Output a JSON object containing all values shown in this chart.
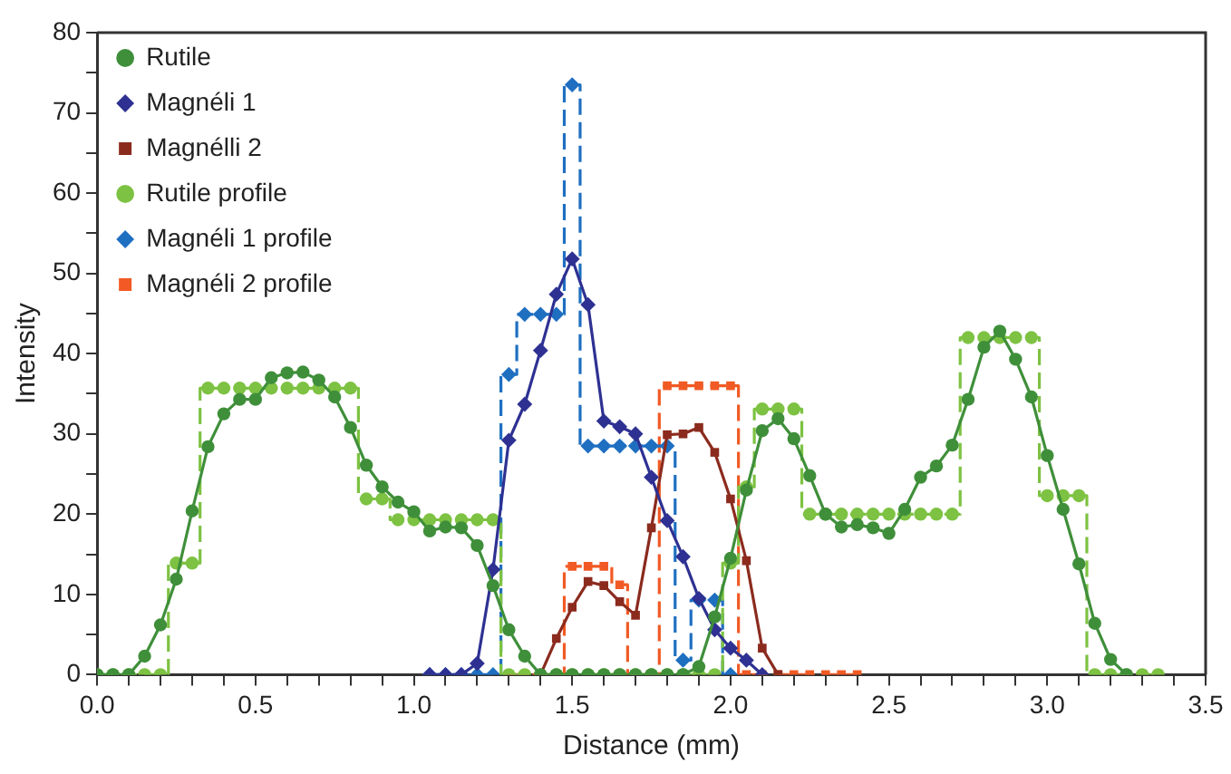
{
  "chart_data": {
    "type": "line",
    "xlabel": "Distance (mm)",
    "ylabel": "Intensity",
    "xlim": [
      0,
      3.5
    ],
    "ylim": [
      0,
      80
    ],
    "xticks": [
      {
        "value": 0,
        "label": "0.0"
      },
      {
        "value": 0.1,
        "label": null
      },
      {
        "value": 0.2,
        "label": null
      },
      {
        "value": 0.3,
        "label": null
      },
      {
        "value": 0.4,
        "label": null
      },
      {
        "value": 0.5,
        "label": "0.5"
      },
      {
        "value": 0.6,
        "label": null
      },
      {
        "value": 0.7,
        "label": null
      },
      {
        "value": 0.8,
        "label": null
      },
      {
        "value": 0.9,
        "label": null
      },
      {
        "value": 1,
        "label": "1.0"
      },
      {
        "value": 1.1,
        "label": null
      },
      {
        "value": 1.2,
        "label": null
      },
      {
        "value": 1.3,
        "label": null
      },
      {
        "value": 1.4,
        "label": null
      },
      {
        "value": 1.5,
        "label": "1.5"
      },
      {
        "value": 1.6,
        "label": null
      },
      {
        "value": 1.7,
        "label": null
      },
      {
        "value": 1.8,
        "label": null
      },
      {
        "value": 1.9,
        "label": null
      },
      {
        "value": 2,
        "label": "2.0"
      },
      {
        "value": 2.1,
        "label": null
      },
      {
        "value": 2.2,
        "label": null
      },
      {
        "value": 2.3,
        "label": null
      },
      {
        "value": 2.4,
        "label": null
      },
      {
        "value": 2.5,
        "label": "2.5"
      },
      {
        "value": 2.6,
        "label": null
      },
      {
        "value": 2.7,
        "label": null
      },
      {
        "value": 2.8,
        "label": null
      },
      {
        "value": 2.9,
        "label": null
      },
      {
        "value": 3,
        "label": "3.0"
      },
      {
        "value": 3.1,
        "label": null
      },
      {
        "value": 3.2,
        "label": null
      },
      {
        "value": 3.3,
        "label": null
      },
      {
        "value": 3.4,
        "label": null
      },
      {
        "value": 3.5,
        "label": "3.5"
      }
    ],
    "yticks": [
      0,
      {
        "value": 5,
        "label": null
      },
      10,
      {
        "value": 15,
        "label": null
      },
      20,
      {
        "value": 25,
        "label": null
      },
      30,
      {
        "value": 35,
        "label": null
      },
      40,
      {
        "value": 45,
        "label": null
      },
      50,
      {
        "value": 55,
        "label": null
      },
      60,
      {
        "value": 65,
        "label": null
      },
      70,
      {
        "value": 75,
        "label": null
      },
      80
    ],
    "grid": false,
    "legend": "top left",
    "series": [
      {
        "name": "Rutile",
        "type": "line",
        "color": "#3f8f3a",
        "marker": "circle",
        "line_style": "solid",
        "x": [
          0,
          0.05,
          0.1,
          0.15,
          0.2,
          0.25,
          0.3,
          0.35,
          0.4,
          0.45,
          0.5,
          0.55,
          0.6,
          0.65,
          0.7,
          0.75,
          0.8,
          0.85,
          0.9,
          0.95,
          1,
          1.05,
          1.1,
          1.15,
          1.2,
          1.25,
          1.3,
          1.35,
          1.4,
          1.45,
          1.5,
          1.55,
          1.6,
          1.65,
          1.7,
          1.75,
          1.8,
          1.85,
          1.9,
          1.95,
          2,
          2.05,
          2.1,
          2.15,
          2.2,
          2.25,
          2.3,
          2.35,
          2.4,
          2.45,
          2.5,
          2.55,
          2.6,
          2.65,
          2.7,
          2.75,
          2.8,
          2.85,
          2.9,
          2.95,
          3,
          3.05,
          3.1,
          3.15,
          3.2,
          3.25
        ],
        "values": [
          0,
          0,
          0,
          2.3,
          6.2,
          11.9,
          20.4,
          28.4,
          32.5,
          34.3,
          34.3,
          37.0,
          37.6,
          37.7,
          36.7,
          34.6,
          30.8,
          26.1,
          23.4,
          21.5,
          20.3,
          17.9,
          18.4,
          18.3,
          16.1,
          11.1,
          5.6,
          2.3,
          0,
          0,
          0,
          0,
          0,
          0,
          0,
          0,
          0,
          0,
          1.0,
          7.2,
          14.5,
          23,
          30.4,
          31.9,
          29.4,
          24.8,
          20.0,
          18.4,
          18.7,
          18.3,
          17.6,
          20.6,
          24.6,
          26.0,
          28.6,
          34.3,
          40.8,
          42.8,
          39.3,
          34.6,
          27.3,
          20.6,
          13.8,
          6.4,
          1.9,
          0
        ]
      },
      {
        "name": "Magnéli 1",
        "type": "line",
        "color": "#2e3192",
        "marker": "diamond",
        "line_style": "solid",
        "x": [
          1.05,
          1.1,
          1.15,
          1.2,
          1.25,
          1.3,
          1.35,
          1.4,
          1.45,
          1.5,
          1.55,
          1.6,
          1.65,
          1.7,
          1.75,
          1.8,
          1.85,
          1.9,
          1.95,
          2,
          2.05,
          2.1
        ],
        "values": [
          0,
          0,
          0,
          1.4,
          13.1,
          29.2,
          33.7,
          40.4,
          47.4,
          51.8,
          46.1,
          31.6,
          30.9,
          30.0,
          24.6,
          19.2,
          14.7,
          9.5,
          5.6,
          3.3,
          1.8,
          0
        ]
      },
      {
        "name": "Magnélli 2",
        "type": "line",
        "color": "#8b2b1e",
        "marker": "square",
        "line_style": "solid",
        "x": [
          1.4,
          1.45,
          1.5,
          1.55,
          1.6,
          1.65,
          1.7,
          1.75,
          1.8,
          1.85,
          1.9,
          1.95,
          2,
          2.05,
          2.1,
          2.15
        ],
        "values": [
          0,
          4.5,
          8.4,
          11.6,
          11.1,
          9.1,
          7.4,
          18.3,
          29.9,
          30.0,
          30.8,
          27.7,
          21.9,
          14.2,
          3.3,
          0
        ]
      },
      {
        "name": "Rutile profile",
        "type": "step",
        "color": "#7dc242",
        "marker": "circle",
        "line_style": "dashed",
        "x": [
          0,
          0.05,
          0.1,
          0.15,
          0.2,
          0.25,
          0.3,
          0.35,
          0.4,
          0.45,
          0.5,
          0.55,
          0.6,
          0.65,
          0.7,
          0.75,
          0.8,
          0.85,
          0.9,
          0.95,
          1,
          1.05,
          1.1,
          1.15,
          1.2,
          1.25,
          1.3,
          1.35,
          1.4,
          1.45,
          1.5,
          1.55,
          1.6,
          1.65,
          1.7,
          1.75,
          1.8,
          1.85,
          1.9,
          1.95,
          2,
          2.05,
          2.1,
          2.15,
          2.2,
          2.25,
          2.3,
          2.35,
          2.4,
          2.45,
          2.5,
          2.55,
          2.6,
          2.65,
          2.7,
          2.75,
          2.8,
          2.85,
          2.9,
          2.95,
          3,
          3.05,
          3.1,
          3.15,
          3.2,
          3.25,
          3.3,
          3.35
        ],
        "values": [
          0,
          0,
          0,
          0,
          0,
          13.9,
          13.9,
          35.7,
          35.7,
          35.7,
          35.7,
          35.7,
          35.7,
          35.7,
          35.7,
          35.7,
          35.7,
          21.9,
          21.9,
          19.3,
          19.3,
          19.3,
          19.3,
          19.3,
          19.3,
          19.3,
          0,
          0,
          0,
          0,
          0,
          0,
          0,
          0,
          0,
          0,
          0,
          0,
          0,
          0,
          13.9,
          23.4,
          33.1,
          33.1,
          33.1,
          20.0,
          20.0,
          20.0,
          20.0,
          20.0,
          20.0,
          20.0,
          20.0,
          20.0,
          20.0,
          42.0,
          42.0,
          42.0,
          42.0,
          42.0,
          22.3,
          22.3,
          22.3,
          0,
          0,
          0,
          0,
          0
        ]
      },
      {
        "name": "Magnéli 1 profile",
        "type": "step",
        "color": "#1f6fc1",
        "marker": "diamond",
        "line_style": "dashed",
        "x": [
          1.05,
          1.1,
          1.15,
          1.2,
          1.25,
          1.3,
          1.35,
          1.4,
          1.45,
          1.5,
          1.55,
          1.6,
          1.65,
          1.7,
          1.75,
          1.8,
          1.85,
          1.9,
          1.95,
          2
        ],
        "values": [
          0,
          0,
          0,
          0,
          0,
          37.4,
          44.9,
          44.9,
          44.9,
          73.5,
          28.5,
          28.5,
          28.5,
          28.5,
          28.5,
          28.5,
          1.8,
          9.3,
          9.3,
          0
        ]
      },
      {
        "name": "Magnéli 2 profile",
        "type": "step",
        "color": "#f15a24",
        "marker": "square",
        "line_style": "dashed",
        "x": [
          1.3,
          1.35,
          1.4,
          1.45,
          1.5,
          1.55,
          1.6,
          1.65,
          1.7,
          1.75,
          1.8,
          1.85,
          1.9,
          1.95,
          2,
          2.05,
          2.1,
          2.15,
          2.2,
          2.25,
          2.3,
          2.35,
          2.4
        ],
        "values": [
          0,
          0,
          0,
          0,
          13.5,
          13.5,
          13.5,
          11.2,
          0,
          0,
          36.0,
          36.0,
          36.0,
          36.0,
          36.0,
          0,
          0,
          0,
          0,
          0,
          0,
          0,
          0
        ]
      }
    ]
  }
}
